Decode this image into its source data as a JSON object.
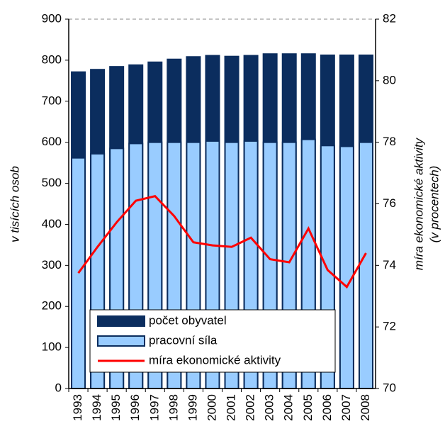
{
  "chart_data": {
    "type": "bar",
    "categories": [
      "1993",
      "1994",
      "1995",
      "1996",
      "1997",
      "1998",
      "1999",
      "2000",
      "2001",
      "2002",
      "2003",
      "2004",
      "2005",
      "2006",
      "2007",
      "2008"
    ],
    "series": [
      {
        "name": "počet obyvatel",
        "color": "#0b2d5e",
        "values": [
          771,
          777,
          784,
          788,
          795,
          802,
          808,
          811,
          809,
          811,
          815,
          815,
          815,
          812,
          812,
          812
        ]
      },
      {
        "name": "pracovní síla",
        "color": "#99ccff",
        "values": [
          562,
          572,
          585,
          597,
          600,
          600,
          600,
          603,
          600,
          603,
          600,
          600,
          607,
          592,
          590,
          600
        ]
      },
      {
        "name": "míra ekonomické aktivity",
        "color": "#ff0000",
        "axis": "y2",
        "type": "line",
        "values": [
          73.75,
          74.6,
          75.4,
          76.1,
          76.25,
          75.6,
          74.75,
          74.65,
          74.6,
          74.9,
          74.2,
          74.1,
          75.2,
          73.85,
          73.3,
          74.4
        ]
      }
    ],
    "ylabel": "v tisících osob",
    "y2label": [
      "míra ekonomické aktivity",
      "(v procentech)"
    ],
    "ylim": [
      0,
      900
    ],
    "yticks": [
      0,
      100,
      200,
      300,
      400,
      500,
      600,
      700,
      800,
      900
    ],
    "y2lim": [
      70,
      82
    ],
    "y2ticks": [
      70,
      72,
      74,
      76,
      78,
      80,
      82
    ],
    "legend": "bottom"
  }
}
